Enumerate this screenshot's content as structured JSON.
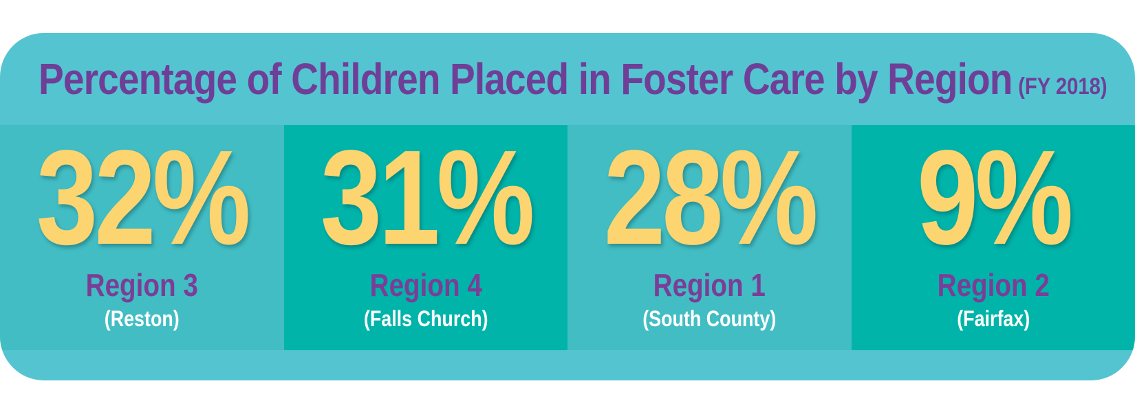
{
  "title": "Percentage of Children Placed in Foster Care by Region",
  "subtitle": "(FY 2018)",
  "regions": [
    {
      "value": "32%",
      "name": "Region 3",
      "place": "(Reston)",
      "percent": 32
    },
    {
      "value": "31%",
      "name": "Region 4",
      "place": "(Falls Church)",
      "percent": 31
    },
    {
      "value": "28%",
      "name": "Region 1",
      "place": "(South County)",
      "percent": 28
    },
    {
      "value": "9%",
      "name": "Region 2",
      "place": "(Fairfax)",
      "percent": 9
    }
  ],
  "colors": {
    "card_bg": "#54c4d1",
    "panel_light": "#42bdc3",
    "panel_dark": "#00b4aa",
    "title": "#6f3f98",
    "value": "#fcd571",
    "region": "#7b3d97",
    "place": "#ffffff"
  }
}
